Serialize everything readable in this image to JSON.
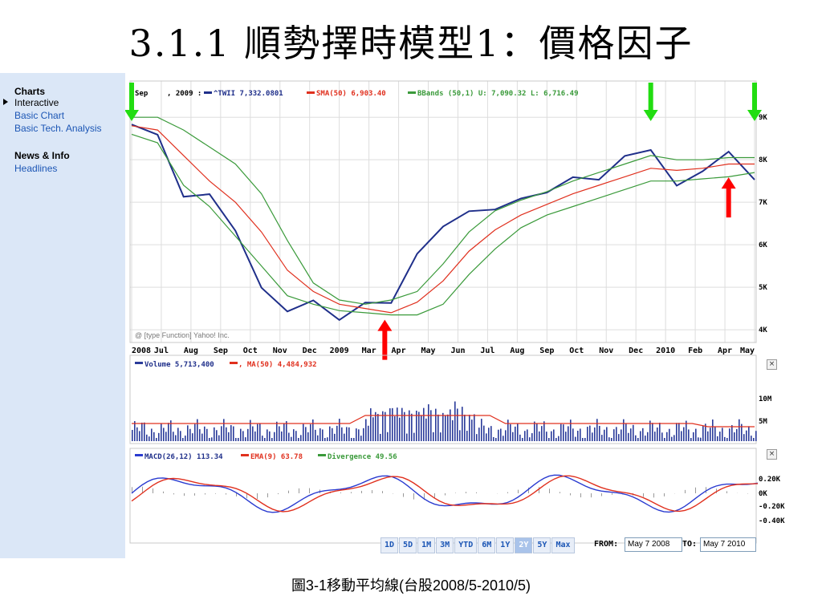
{
  "slide": {
    "title": "3.1.1 順勢擇時模型1：價格因子",
    "caption": "圖3-1移動平均線(台股2008/5-2010/5)"
  },
  "sidebar": {
    "sections": [
      {
        "heading": "Charts",
        "items": [
          {
            "label": "Interactive",
            "active": true
          },
          {
            "label": "Basic Chart",
            "active": false
          },
          {
            "label": "Basic Tech. Analysis",
            "active": false
          }
        ]
      },
      {
        "heading": "News & Info",
        "items": [
          {
            "label": "Headlines",
            "active": false
          }
        ]
      }
    ]
  },
  "price_panel": {
    "legend_date": "Sep",
    "legend_date2": ", 2009 :",
    "series_label": "^TWII 7,332.0801",
    "sma_label": "SMA(50) 6,903.40",
    "bbands_label": "BBands (50,1) U: 7,090.32 L: 6,716.49",
    "watermark": "@ [type Function] Yahoo! Inc.",
    "y_ticks": [
      "9K",
      "8K",
      "7K",
      "6K",
      "5K",
      "4K"
    ],
    "x_ticks": [
      "2008",
      "Jul",
      "Aug",
      "Sep",
      "Oct",
      "Nov",
      "Dec",
      "2009",
      "Mar",
      "Apr",
      "May",
      "Jun",
      "Jul",
      "Aug",
      "Sep",
      "Oct",
      "Nov",
      "Dec",
      "2010",
      "Feb",
      "Apr",
      "May"
    ]
  },
  "volume_panel": {
    "volume_label": "Volume 5,713,400",
    "ma_label": ", MA(50) 4,484,932",
    "y_ticks": [
      "10M",
      "5M"
    ]
  },
  "macd_panel": {
    "macd_label": "MACD(26,12) 113.34",
    "ema_label": "EMA(9) 63.78",
    "div_label": "Divergence 49.56",
    "y_ticks": [
      "0.20K",
      "0K",
      "-0.20K",
      "-0.40K"
    ]
  },
  "range_buttons": [
    {
      "label": "1D",
      "active": false
    },
    {
      "label": "5D",
      "active": false
    },
    {
      "label": "1M",
      "active": false
    },
    {
      "label": "3M",
      "active": false
    },
    {
      "label": "YTD",
      "active": false
    },
    {
      "label": "6M",
      "active": false
    },
    {
      "label": "1Y",
      "active": false
    },
    {
      "label": "2Y",
      "active": true
    },
    {
      "label": "5Y",
      "active": false
    },
    {
      "label": "Max",
      "active": false
    }
  ],
  "date_range": {
    "from_label": "FROM:",
    "from_value": "May 7 2008",
    "to_label": "TO:",
    "to_value": "May 7 2010"
  },
  "colors": {
    "price": "#1f2f8a",
    "sma": "#e0301e",
    "bbands": "#3a9a3a",
    "volume": "#2a3b9a",
    "macd": "#2a3bd0",
    "ema": "#e0301e",
    "divergence": "#999999",
    "grid": "#dddddd",
    "signal_buy": "#ff0000",
    "signal_sell": "#22dd11"
  },
  "chart_data": {
    "type": "line",
    "x": [
      "2008-05",
      "2008-06",
      "2008-07",
      "2008-08",
      "2008-09",
      "2008-10",
      "2008-11",
      "2008-12",
      "2009-01",
      "2009-02",
      "2009-03",
      "2009-04",
      "2009-05",
      "2009-06",
      "2009-07",
      "2009-08",
      "2009-09",
      "2009-10",
      "2009-11",
      "2009-12",
      "2010-01",
      "2010-02",
      "2010-03",
      "2010-04",
      "2010-05"
    ],
    "ylim": [
      3700,
      9400
    ],
    "series": [
      {
        "name": "^TWII",
        "values": [
          8900,
          8500,
          7200,
          7100,
          6400,
          4900,
          4500,
          4600,
          4300,
          4550,
          4700,
          5700,
          6500,
          6700,
          6900,
          7000,
          7300,
          7500,
          7600,
          8000,
          8300,
          7300,
          7800,
          8100,
          7600
        ]
      },
      {
        "name": "SMA(50)",
        "values": [
          8800,
          8700,
          8100,
          7500,
          7000,
          6300,
          5400,
          4900,
          4600,
          4500,
          4400,
          4650,
          5150,
          5850,
          6350,
          6700,
          6950,
          7200,
          7400,
          7600,
          7800,
          7750,
          7800,
          7900,
          7900
        ]
      },
      {
        "name": "BBands U",
        "values": [
          9000,
          9000,
          8700,
          8300,
          7900,
          7200,
          6100,
          5100,
          4700,
          4600,
          4700,
          4900,
          5550,
          6300,
          6800,
          7050,
          7250,
          7500,
          7700,
          7900,
          8100,
          8000,
          8000,
          8050,
          8050
        ]
      },
      {
        "name": "BBands L",
        "values": [
          8600,
          8400,
          7400,
          6900,
          6200,
          5500,
          4800,
          4600,
          4450,
          4400,
          4350,
          4350,
          4600,
          5300,
          5900,
          6400,
          6700,
          6900,
          7100,
          7300,
          7500,
          7500,
          7550,
          7600,
          7700
        ]
      }
    ],
    "signals": [
      {
        "type": "sell",
        "x": "2008-05"
      },
      {
        "type": "buy",
        "x": "2009-03"
      },
      {
        "type": "sell",
        "x": "2010-01"
      },
      {
        "type": "buy",
        "x": "2010-04"
      },
      {
        "type": "sell",
        "x": "2010-05"
      }
    ]
  }
}
